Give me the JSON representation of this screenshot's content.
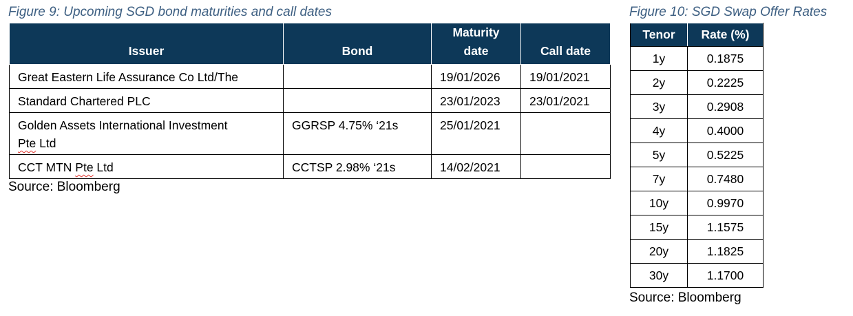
{
  "figure9": {
    "title": "Figure 9: Upcoming SGD bond maturities and call dates",
    "columns": {
      "issuer": "Issuer",
      "bond": "Bond",
      "maturity_line1": "Maturity",
      "maturity_line2": "date",
      "call_date": "Call date"
    },
    "rows": [
      {
        "issuer": "Great Eastern Life Assurance Co Ltd/The",
        "bond": "",
        "maturity_date": "19/01/2026",
        "call_date": "19/01/2021"
      },
      {
        "issuer": "Standard Chartered PLC",
        "bond": "",
        "maturity_date": "23/01/2023",
        "call_date": "23/01/2021"
      },
      {
        "issuer_line1": "Golden Assets International Investment",
        "issuer_line2_word": "Pte",
        "issuer_line2_rest": " Ltd",
        "bond": "GGRSP 4.75% ‘21s",
        "maturity_date": "25/01/2021",
        "call_date": ""
      },
      {
        "issuer_pre": "CCT MTN ",
        "issuer_word": "Pte",
        "issuer_post": " Ltd",
        "bond": "CCTSP 2.98% ‘21s",
        "maturity_date": "14/02/2021",
        "call_date": ""
      }
    ],
    "source": "Source: Bloomberg"
  },
  "figure10": {
    "title": "Figure 10: SGD Swap Offer Rates",
    "columns": {
      "tenor": "Tenor",
      "rate": "Rate (%)"
    },
    "rows": [
      {
        "tenor": "1y",
        "rate": "0.1875"
      },
      {
        "tenor": "2y",
        "rate": "0.2225"
      },
      {
        "tenor": "3y",
        "rate": "0.2908"
      },
      {
        "tenor": "4y",
        "rate": "0.4000"
      },
      {
        "tenor": "5y",
        "rate": "0.5225"
      },
      {
        "tenor": "7y",
        "rate": "0.7480"
      },
      {
        "tenor": "10y",
        "rate": "0.9970"
      },
      {
        "tenor": "15y",
        "rate": "1.1575"
      },
      {
        "tenor": "20y",
        "rate": "1.1825"
      },
      {
        "tenor": "30y",
        "rate": "1.1700"
      }
    ],
    "source": "Source: Bloomberg"
  },
  "colors": {
    "header_fill": "#0d3858",
    "title_text": "#3d5f82",
    "spellcheck_underline": "#e0312b"
  }
}
